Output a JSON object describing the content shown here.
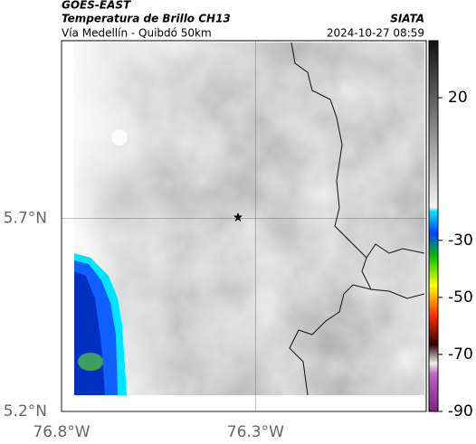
{
  "header": {
    "source": "GOES-EAST",
    "title": "Temperatura de Brillo CH13",
    "subtitle": "Vía Medellín - Quibdó 50km",
    "brand": "SIATA",
    "datetime": "2024-10-27 08:59"
  },
  "map": {
    "xlim": [
      -76.8,
      -75.86
    ],
    "ylim": [
      5.2,
      6.16
    ],
    "xticks": [
      {
        "value": -76.8,
        "label": "76.8°W"
      },
      {
        "value": -76.3,
        "label": "76.3°W"
      }
    ],
    "yticks": [
      {
        "value": 5.2,
        "label": "5.2°N"
      },
      {
        "value": 5.7,
        "label": "5.7°N"
      }
    ],
    "grid": true
  },
  "colorbar": {
    "lim": [
      -90,
      40
    ],
    "ticks": [
      20,
      -30,
      -50,
      -70,
      -90
    ]
  }
}
